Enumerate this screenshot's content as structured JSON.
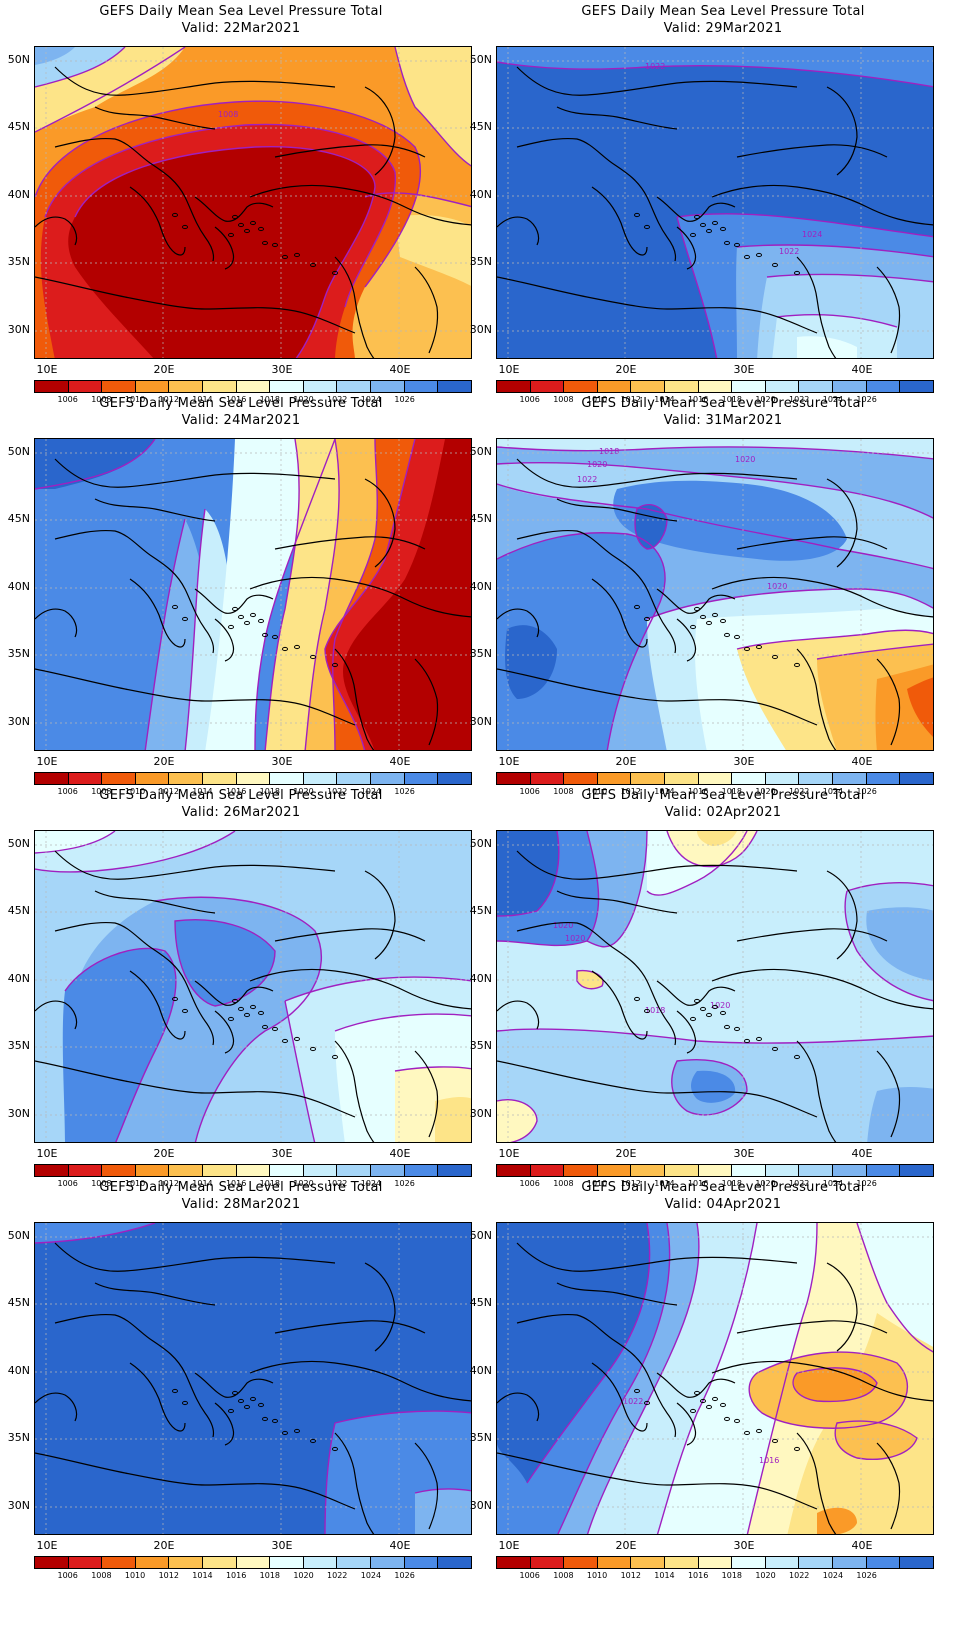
{
  "palette": [
    "#b30000",
    "#dc1c1c",
    "#f05a0a",
    "#fa9a28",
    "#fcc050",
    "#fde488",
    "#fff8c0",
    "#e6ffff",
    "#c8eefc",
    "#a6d6f8",
    "#7db4f0",
    "#4b8ae6",
    "#2a66cc"
  ],
  "colorbar_labels": [
    "1006",
    "1008",
    "1010",
    "1012",
    "1014",
    "1016",
    "1018",
    "1020",
    "1022",
    "1024",
    "1026"
  ],
  "lat_labels": [
    "50N",
    "45N",
    "40N",
    "35N",
    "30N"
  ],
  "lon_labels": [
    "10E",
    "20E",
    "30E",
    "40E"
  ],
  "contour_color": "#a020c0",
  "panels": [
    {
      "title": "GEFS Daily Mean Sea Level Pressure Total",
      "valid": "Valid: 22Mar2021",
      "contour_labels": [
        "1008"
      ],
      "fill": "dense-low-pressure-red-orange"
    },
    {
      "title": "GEFS Daily Mean Sea Level Pressure Total",
      "valid": "Valid: 29Mar2021",
      "contour_labels": [
        "1022",
        "1024",
        "1022"
      ],
      "fill": "high-pressure-blue"
    },
    {
      "title": "GEFS Daily Mean Sea Level Pressure Total",
      "valid": "Valid: 24Mar2021",
      "contour_labels": [],
      "fill": "blue-west-red-east"
    },
    {
      "title": "GEFS Daily Mean Sea Level Pressure Total",
      "valid": "Valid: 31Mar2021",
      "contour_labels": [
        "1018",
        "1020",
        "1022",
        "1020",
        "1020"
      ],
      "fill": "blue-with-yellow-southeast"
    },
    {
      "title": "GEFS Daily Mean Sea Level Pressure Total",
      "valid": "Valid: 26Mar2021",
      "contour_labels": [],
      "fill": "light-blue"
    },
    {
      "title": "GEFS Daily Mean Sea Level Pressure Total",
      "valid": "Valid: 02Apr2021",
      "contour_labels": [
        "1020",
        "1020",
        "1018",
        "1020"
      ],
      "fill": "pale-blue"
    },
    {
      "title": "GEFS Daily Mean Sea Level Pressure Total",
      "valid": "Valid: 28Mar2021",
      "contour_labels": [],
      "fill": "deep-blue"
    },
    {
      "title": "GEFS Daily Mean Sea Level Pressure Total",
      "valid": "Valid: 04Apr2021",
      "contour_labels": [
        "1022",
        "1016"
      ],
      "fill": "blue-west-yellow-east"
    }
  ]
}
